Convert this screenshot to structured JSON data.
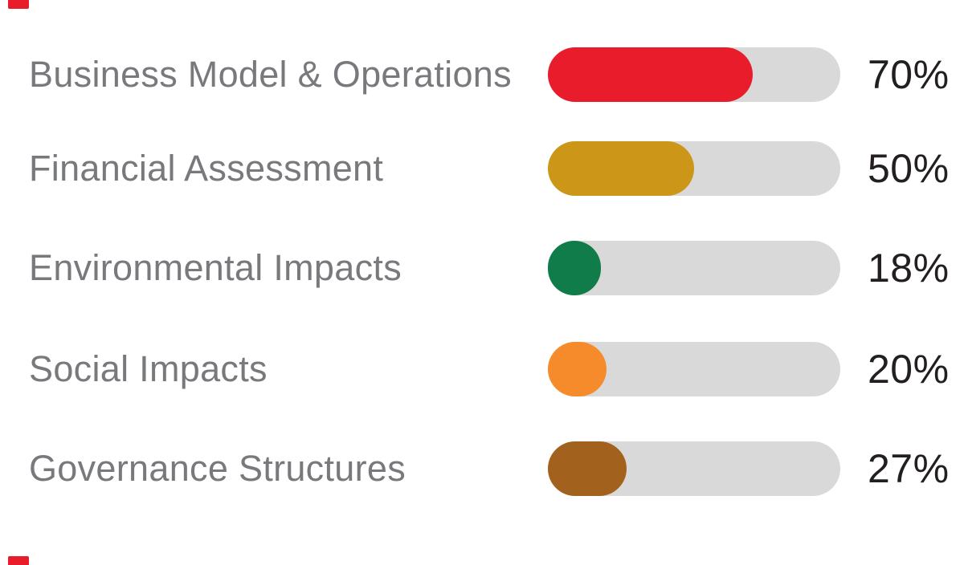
{
  "chart_data": {
    "type": "bar",
    "orientation": "horizontal",
    "title": "",
    "categories": [
      "Business Model & Operations",
      "Financial Assessment",
      "Environmental Impacts",
      "Social Impacts",
      "Governance Structures"
    ],
    "values": [
      70,
      50,
      18,
      20,
      27
    ],
    "value_labels": [
      "70%",
      "50%",
      "18%",
      "20%",
      "27%"
    ],
    "bar_colors": [
      "#E91C2C",
      "#CC9718",
      "#107C4A",
      "#F68B2B",
      "#A2621E"
    ],
    "track_color": "#D9D9D9",
    "xlim": [
      0,
      100
    ],
    "grid": false,
    "legend": false
  },
  "styles": {
    "background": "#FFFFFF",
    "label_color": "#78797C",
    "value_color": "#231F20",
    "accent_color": "#E91C2C"
  },
  "decor": {
    "top_left_mark": true,
    "bottom_left_mark": true
  }
}
